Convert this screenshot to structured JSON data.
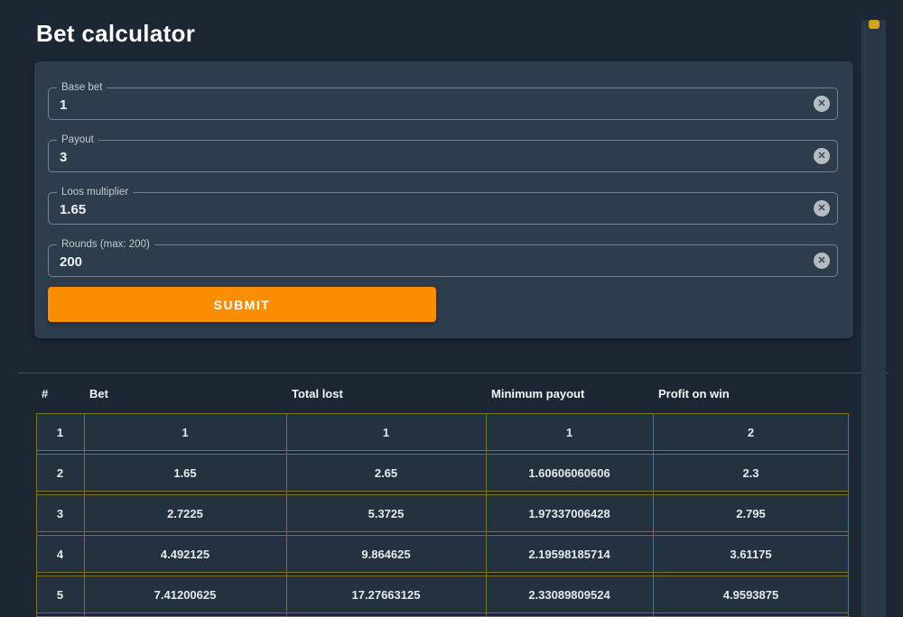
{
  "page": {
    "title": "Bet calculator"
  },
  "colors": {
    "background": "#1c2733",
    "card": "#2e3d4b",
    "accent_orange": "#fb8e00",
    "table_border_olive": "#7b7322",
    "scrollbar_thumb_yellow": "#d1a51a"
  },
  "form": {
    "fields": [
      {
        "label": "Base bet",
        "value": "1"
      },
      {
        "label": "Payout",
        "value": "3"
      },
      {
        "label": "Loos multiplier",
        "value": "1.65"
      },
      {
        "label": "Rounds (max: 200)",
        "value": "200"
      }
    ],
    "clear_icon": "circle-x-icon",
    "submit_label": "SUBMIT"
  },
  "table": {
    "columns": [
      "#",
      "Bet",
      "Total lost",
      "Minimum payout",
      "Profit on win"
    ],
    "rows": [
      [
        "1",
        "1",
        "1",
        "1",
        "2"
      ],
      [
        "2",
        "1.65",
        "2.65",
        "1.60606060606",
        "2.3"
      ],
      [
        "3",
        "2.7225",
        "5.3725",
        "1.97337006428",
        "2.795"
      ],
      [
        "4",
        "4.492125",
        "9.864625",
        "2.19598185714",
        "3.61175"
      ],
      [
        "5",
        "7.41200625",
        "17.27663125",
        "2.33089809524",
        "4.9593875"
      ]
    ]
  }
}
